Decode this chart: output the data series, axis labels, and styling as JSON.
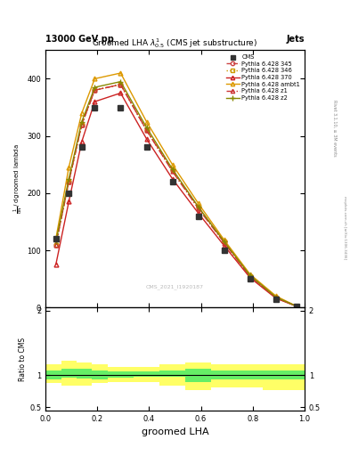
{
  "title": "Groomed LHA $\\lambda^{1}_{0.5}$ (CMS jet substructure)",
  "header_left": "13000 GeV pp",
  "header_right": "Jets",
  "xlabel": "groomed LHA",
  "ylabel_ratio": "Ratio to CMS",
  "watermark": "CMS_2021_I1920187",
  "rivet_label": "Rivet 3.1.10, ≥ 3M events",
  "mcplots_label": "mcplots.cern.ch [arXiv:1306.3436]",
  "x_data": [
    0.04,
    0.09,
    0.14,
    0.19,
    0.29,
    0.39,
    0.49,
    0.59,
    0.69,
    0.79,
    0.89,
    0.97
  ],
  "cms_y": [
    120,
    200,
    280,
    350,
    350,
    280,
    220,
    160,
    100,
    50,
    15,
    2
  ],
  "py345_y": [
    110,
    220,
    320,
    380,
    390,
    310,
    240,
    175,
    115,
    55,
    18,
    2
  ],
  "py346_y": [
    110,
    220,
    320,
    380,
    390,
    310,
    240,
    175,
    115,
    55,
    18,
    2
  ],
  "py370_y": [
    75,
    185,
    290,
    360,
    375,
    295,
    225,
    165,
    108,
    52,
    16,
    2
  ],
  "pyambt_y": [
    120,
    245,
    340,
    400,
    410,
    325,
    250,
    182,
    118,
    58,
    20,
    2
  ],
  "pyz1_y": [
    110,
    220,
    320,
    380,
    390,
    310,
    238,
    173,
    113,
    54,
    17,
    2
  ],
  "pyz2_y": [
    115,
    225,
    325,
    385,
    395,
    315,
    242,
    176,
    115,
    56,
    18,
    2
  ],
  "cms_color": "#333333",
  "py345_color": "#cc4444",
  "py346_color": "#cc9900",
  "py370_color": "#cc2222",
  "pyambt_color": "#dd9900",
  "pyz1_color": "#cc3333",
  "pyz2_color": "#888800",
  "py345_label": "Pythia 6.428 345",
  "py346_label": "Pythia 6.428 346",
  "py370_label": "Pythia 6.428 370",
  "pyambt_label": "Pythia 6.428 ambt1",
  "pyz1_label": "Pythia 6.428 z1",
  "pyz2_label": "Pythia 6.428 z2",
  "ylim_main": [
    0,
    450
  ],
  "yticks_main": [
    0,
    100,
    200,
    300,
    400
  ],
  "ratio_edges": [
    0.0,
    0.06,
    0.12,
    0.18,
    0.24,
    0.34,
    0.44,
    0.54,
    0.64,
    0.74,
    0.84,
    0.92,
    1.0
  ],
  "ratio_green_low": [
    0.93,
    0.96,
    0.94,
    0.93,
    0.96,
    0.97,
    0.97,
    0.89,
    0.93,
    0.93,
    0.93,
    0.93
  ],
  "ratio_green_high": [
    1.07,
    1.1,
    1.1,
    1.07,
    1.05,
    1.05,
    1.07,
    1.1,
    1.07,
    1.07,
    1.07,
    1.07
  ],
  "ratio_yellow_low": [
    0.87,
    0.83,
    0.84,
    0.87,
    0.89,
    0.89,
    0.83,
    0.76,
    0.81,
    0.81,
    0.76,
    0.76
  ],
  "ratio_yellow_high": [
    1.17,
    1.22,
    1.2,
    1.17,
    1.13,
    1.13,
    1.17,
    1.2,
    1.17,
    1.17,
    1.17,
    1.17
  ],
  "bg_color": "#ffffff"
}
